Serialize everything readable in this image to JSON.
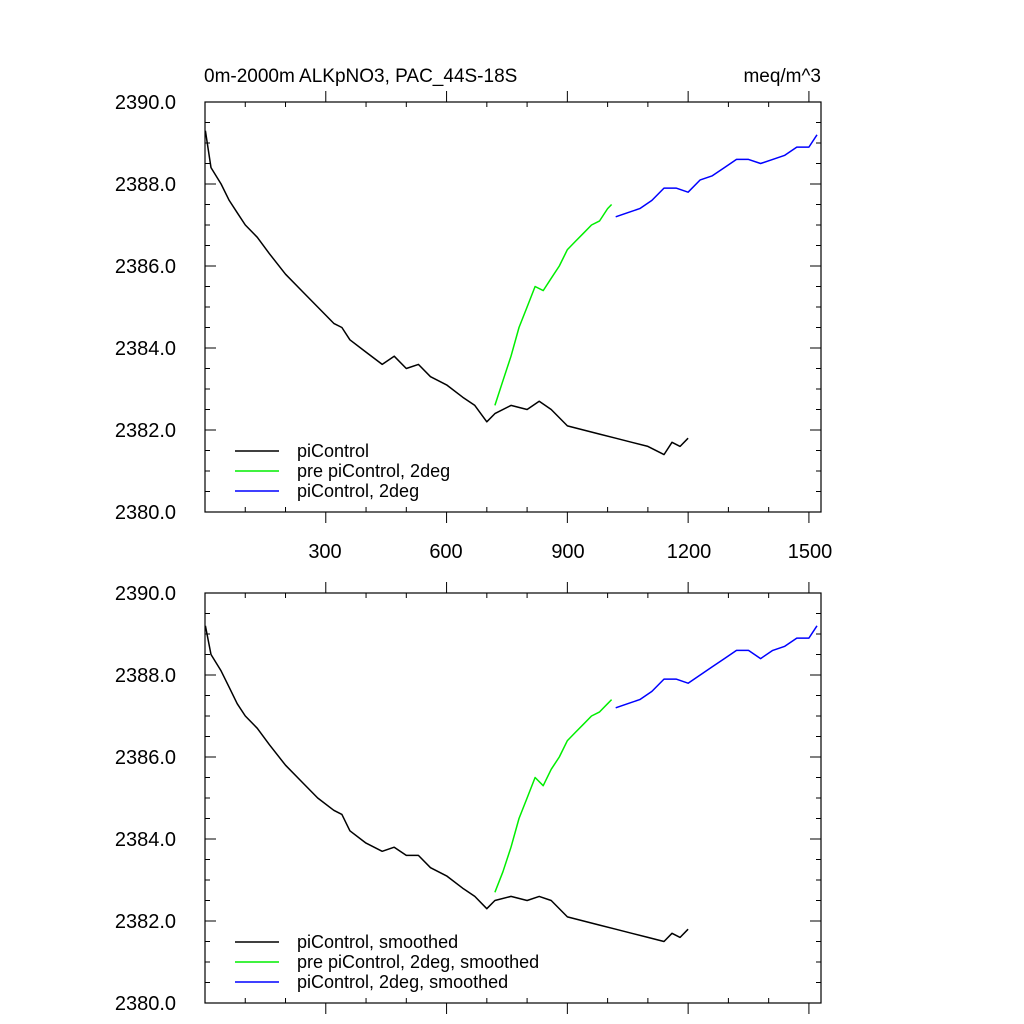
{
  "chart_data": [
    {
      "type": "line",
      "title_left": "0m-2000m ALKpNO3, PAC_44S-18S",
      "title_right": "meq/m^3",
      "xlabel": "",
      "ylabel": "",
      "xlim": [
        0,
        1530
      ],
      "ylim": [
        2380,
        2390
      ],
      "y_ticks": [
        "2380.0",
        "2382.0",
        "2384.0",
        "2386.0",
        "2388.0",
        "2390.0"
      ],
      "x_ticks": [
        "300",
        "600",
        "900",
        "1200",
        "1500"
      ],
      "legend_position": "bottom-left",
      "series": [
        {
          "name": "piControl",
          "color": "#000000",
          "x": [
            1,
            15,
            40,
            60,
            80,
            100,
            130,
            160,
            200,
            240,
            280,
            320,
            340,
            360,
            400,
            440,
            470,
            500,
            530,
            560,
            600,
            640,
            670,
            700,
            720,
            760,
            800,
            830,
            860,
            900,
            940,
            980,
            1020,
            1060,
            1100,
            1140,
            1160,
            1180,
            1200
          ],
          "y": [
            2389.3,
            2388.4,
            2388.0,
            2387.6,
            2387.3,
            2387.0,
            2386.7,
            2386.3,
            2385.8,
            2385.4,
            2385.0,
            2384.6,
            2384.5,
            2384.2,
            2383.9,
            2383.6,
            2383.8,
            2383.5,
            2383.6,
            2383.3,
            2383.1,
            2382.8,
            2382.6,
            2382.2,
            2382.4,
            2382.6,
            2382.5,
            2382.7,
            2382.5,
            2382.1,
            2382.0,
            2381.9,
            2381.8,
            2381.7,
            2381.6,
            2381.4,
            2381.7,
            2381.6,
            2381.8
          ]
        },
        {
          "name": "pre piControl, 2deg",
          "color": "#00ee00",
          "x": [
            720,
            740,
            760,
            780,
            800,
            820,
            840,
            860,
            880,
            900,
            920,
            940,
            960,
            980,
            1000,
            1010
          ],
          "y": [
            2382.6,
            2383.2,
            2383.8,
            2384.5,
            2385.0,
            2385.5,
            2385.4,
            2385.7,
            2386.0,
            2386.4,
            2386.6,
            2386.8,
            2387.0,
            2387.1,
            2387.4,
            2387.5
          ]
        },
        {
          "name": "piControl, 2deg",
          "color": "#0000ff",
          "x": [
            1020,
            1050,
            1080,
            1110,
            1140,
            1170,
            1200,
            1230,
            1260,
            1290,
            1320,
            1350,
            1380,
            1410,
            1440,
            1470,
            1500,
            1520
          ],
          "y": [
            2387.2,
            2387.3,
            2387.4,
            2387.6,
            2387.9,
            2387.9,
            2387.8,
            2388.1,
            2388.2,
            2388.4,
            2388.6,
            2388.6,
            2388.5,
            2388.6,
            2388.7,
            2388.9,
            2388.9,
            2389.2
          ]
        }
      ]
    },
    {
      "type": "line",
      "title_left": "",
      "title_right": "",
      "xlabel": "",
      "ylabel": "",
      "xlim": [
        0,
        1530
      ],
      "ylim": [
        2380,
        2390
      ],
      "y_ticks": [
        "2380.0",
        "2382.0",
        "2384.0",
        "2386.0",
        "2388.0",
        "2390.0"
      ],
      "x_ticks": [],
      "legend_position": "bottom-left",
      "series": [
        {
          "name": "piControl, smoothed",
          "color": "#000000",
          "x": [
            1,
            15,
            40,
            60,
            80,
            100,
            130,
            160,
            200,
            240,
            280,
            320,
            340,
            360,
            400,
            440,
            470,
            500,
            530,
            560,
            600,
            640,
            670,
            700,
            720,
            760,
            800,
            830,
            860,
            900,
            940,
            980,
            1020,
            1060,
            1100,
            1140,
            1160,
            1180,
            1200
          ],
          "y": [
            2389.2,
            2388.5,
            2388.1,
            2387.7,
            2387.3,
            2387.0,
            2386.7,
            2386.3,
            2385.8,
            2385.4,
            2385.0,
            2384.7,
            2384.6,
            2384.2,
            2383.9,
            2383.7,
            2383.8,
            2383.6,
            2383.6,
            2383.3,
            2383.1,
            2382.8,
            2382.6,
            2382.3,
            2382.5,
            2382.6,
            2382.5,
            2382.6,
            2382.5,
            2382.1,
            2382.0,
            2381.9,
            2381.8,
            2381.7,
            2381.6,
            2381.5,
            2381.7,
            2381.6,
            2381.8
          ]
        },
        {
          "name": "pre piControl, 2deg, smoothed",
          "color": "#00ee00",
          "x": [
            720,
            740,
            760,
            780,
            800,
            820,
            840,
            860,
            880,
            900,
            920,
            940,
            960,
            980,
            1000,
            1010
          ],
          "y": [
            2382.7,
            2383.2,
            2383.8,
            2384.5,
            2385.0,
            2385.5,
            2385.3,
            2385.7,
            2386.0,
            2386.4,
            2386.6,
            2386.8,
            2387.0,
            2387.1,
            2387.3,
            2387.4
          ]
        },
        {
          "name": "piControl, 2deg, smoothed",
          "color": "#0000ff",
          "x": [
            1020,
            1050,
            1080,
            1110,
            1140,
            1170,
            1200,
            1230,
            1260,
            1290,
            1320,
            1350,
            1380,
            1410,
            1440,
            1470,
            1500,
            1520
          ],
          "y": [
            2387.2,
            2387.3,
            2387.4,
            2387.6,
            2387.9,
            2387.9,
            2387.8,
            2388.0,
            2388.2,
            2388.4,
            2388.6,
            2388.6,
            2388.4,
            2388.6,
            2388.7,
            2388.9,
            2388.9,
            2389.2
          ]
        }
      ]
    }
  ]
}
